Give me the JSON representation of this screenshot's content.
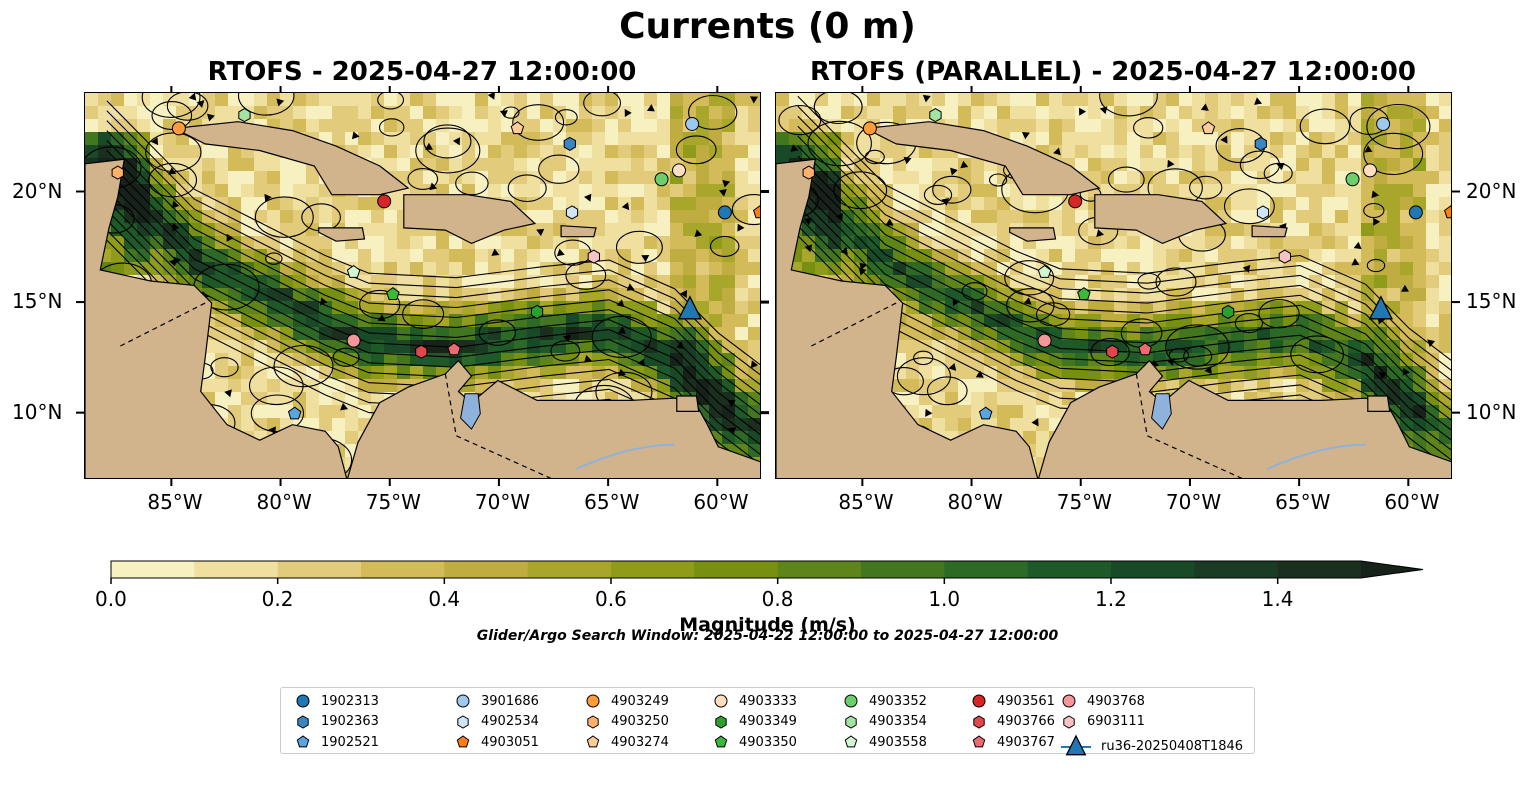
{
  "figure": {
    "main_title": "Currents (0 m)",
    "panels": [
      {
        "title": "RTOFS - 2025-04-27 12:00:00"
      },
      {
        "title": "RTOFS (PARALLEL) - 2025-04-27 12:00:00"
      }
    ],
    "lon_ticks": [
      "85°W",
      "80°W",
      "75°W",
      "70°W",
      "65°W",
      "60°W"
    ],
    "lat_ticks": [
      "20°N",
      "15°N",
      "10°N"
    ],
    "colorbar": {
      "label": "Magnitude (m/s)",
      "ticks": [
        "0.0",
        "0.2",
        "0.4",
        "0.6",
        "0.8",
        "1.0",
        "1.2",
        "1.4"
      ]
    },
    "search_window": "Glider/Argo Search Window: 2025-04-22 12:00:00 to 2025-04-27 12:00:00"
  },
  "colors": {
    "land": "#d2b48c",
    "lakes": "#8fb2dd",
    "colormap": [
      "#f7f1c2",
      "#efe0a0",
      "#e3cb7c",
      "#d3bb5a",
      "#c0ad42",
      "#a8a72c",
      "#8f9c1a",
      "#779012",
      "#5e8519",
      "#43771f",
      "#2d6a25",
      "#1d5a27",
      "#194a27",
      "#1a3c24",
      "#1b2f1f",
      "#17221a"
    ]
  },
  "legend": [
    {
      "label": "1902313",
      "marker": "circle",
      "color": "#1f77b4"
    },
    {
      "label": "1902363",
      "marker": "hexagon",
      "color": "#3a86c2"
    },
    {
      "label": "1902521",
      "marker": "pentagon",
      "color": "#5aa4e0"
    },
    {
      "label": "3901686",
      "marker": "circle",
      "color": "#9ec9ef"
    },
    {
      "label": "4902534",
      "marker": "hexagon",
      "color": "#cfe5f6"
    },
    {
      "label": "4903051",
      "marker": "pentagon",
      "color": "#ff7f0e"
    },
    {
      "label": "4903249",
      "marker": "circle",
      "color": "#ff9c3a"
    },
    {
      "label": "4903250",
      "marker": "hexagon",
      "color": "#ffb06b"
    },
    {
      "label": "4903274",
      "marker": "pentagon",
      "color": "#ffcb97"
    },
    {
      "label": "4903333",
      "marker": "circle",
      "color": "#ffdfc0"
    },
    {
      "label": "4903349",
      "marker": "hexagon",
      "color": "#2ca02c"
    },
    {
      "label": "4903350",
      "marker": "pentagon",
      "color": "#3cb83c"
    },
    {
      "label": "4903352",
      "marker": "circle",
      "color": "#6ccf6c"
    },
    {
      "label": "4903354",
      "marker": "hexagon",
      "color": "#a3e3a3"
    },
    {
      "label": "4903558",
      "marker": "pentagon",
      "color": "#d2f5d2"
    },
    {
      "label": "4903561",
      "marker": "circle",
      "color": "#d62728"
    },
    {
      "label": "4903766",
      "marker": "hexagon",
      "color": "#e0474a"
    },
    {
      "label": "4903767",
      "marker": "pentagon",
      "color": "#ee6a72"
    },
    {
      "label": "4903768",
      "marker": "circle",
      "color": "#f4979a"
    },
    {
      "label": "6903111",
      "marker": "hexagon",
      "color": "#f9c2c4"
    },
    {
      "label": "ru36-20250408T1846",
      "marker": "triangle",
      "color": "#1f77b4"
    }
  ],
  "chart_data": {
    "type": "heatmap",
    "description_kind": "surface current magnitude with streamlines",
    "units": "m/s",
    "color_range": [
      0.0,
      1.5
    ],
    "color_levels": [
      0.0,
      0.1,
      0.2,
      0.3,
      0.4,
      0.5,
      0.6,
      0.7,
      0.8,
      0.9,
      1.0,
      1.1,
      1.2,
      1.3,
      1.4,
      1.5
    ],
    "lon_range": [
      -89,
      -58
    ],
    "lat_range": [
      7,
      24.5
    ],
    "jet_core": [
      [
        -88,
        21
      ],
      [
        -86,
        19
      ],
      [
        -84,
        17
      ],
      [
        -81,
        15.5
      ],
      [
        -78,
        14
      ],
      [
        -76,
        13.2
      ],
      [
        -72,
        13.0
      ],
      [
        -68,
        13.5
      ],
      [
        -65,
        13.8
      ],
      [
        -62,
        12.5
      ],
      [
        -60,
        10.5
      ],
      [
        -58,
        9
      ]
    ],
    "markers_rtofs": [
      {
        "id": "4903249",
        "lon": -84.7,
        "lat": 22.9
      },
      {
        "id": "4903354",
        "lon": -81.7,
        "lat": 23.5
      },
      {
        "id": "4903250",
        "lon": -87.5,
        "lat": 20.9
      },
      {
        "id": "4903274",
        "lon": -69.2,
        "lat": 22.9
      },
      {
        "id": "1902363",
        "lon": -66.8,
        "lat": 22.2
      },
      {
        "id": "3901686",
        "lon": -61.2,
        "lat": 23.1
      },
      {
        "id": "4903333",
        "lon": -61.8,
        "lat": 21.0
      },
      {
        "id": "4903352",
        "lon": -62.6,
        "lat": 20.6
      },
      {
        "id": "4903561",
        "lon": -75.3,
        "lat": 19.6
      },
      {
        "id": "4902534",
        "lon": -66.7,
        "lat": 19.1
      },
      {
        "id": "1902313",
        "lon": -59.7,
        "lat": 19.1
      },
      {
        "id": "4903051",
        "lon": -58.1,
        "lat": 19.1
      },
      {
        "id": "6903111",
        "lon": -65.7,
        "lat": 17.1
      },
      {
        "id": "4903558",
        "lon": -76.7,
        "lat": 16.4
      },
      {
        "id": "4903350",
        "lon": -74.9,
        "lat": 15.4
      },
      {
        "id": "4903349",
        "lon": -68.3,
        "lat": 14.6
      },
      {
        "id": "4903768",
        "lon": -76.7,
        "lat": 13.3
      },
      {
        "id": "4903766",
        "lon": -73.6,
        "lat": 12.8
      },
      {
        "id": "4903767",
        "lon": -72.1,
        "lat": 12.9
      },
      {
        "id": "1902521",
        "lon": -79.4,
        "lat": 10.0
      },
      {
        "id": "ru36-20250408T1846",
        "lon": -61.3,
        "lat": 14.7
      }
    ]
  }
}
